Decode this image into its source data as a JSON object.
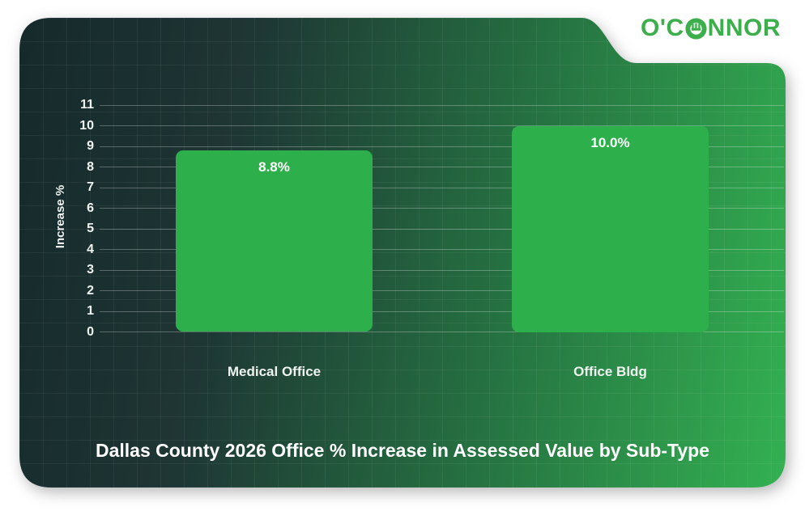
{
  "logo": {
    "brand": "O'Connor",
    "text_pre": "O'C",
    "text_post": "NNOR",
    "color": "#3dae4c"
  },
  "colors": {
    "bar_color": "#2db04c",
    "card_gradient": [
      "#16292b",
      "#1e3634",
      "#257041",
      "#33b151"
    ],
    "text_color": "#ffffff"
  },
  "chart_data": {
    "type": "bar",
    "title": "Dallas County 2026 Office % Increase in Assessed Value by Sub-Type",
    "ylabel": "Increase %",
    "xlabel": "",
    "categories": [
      "Medical Office",
      "Office Bldg"
    ],
    "values": [
      8.8,
      10.0
    ],
    "value_labels": [
      "8.8%",
      "10.0%"
    ],
    "ylim": [
      0,
      11
    ],
    "yticks": [
      0,
      1,
      2,
      3,
      4,
      5,
      6,
      7,
      8,
      9,
      10,
      11
    ],
    "grid": true,
    "legend": false
  }
}
